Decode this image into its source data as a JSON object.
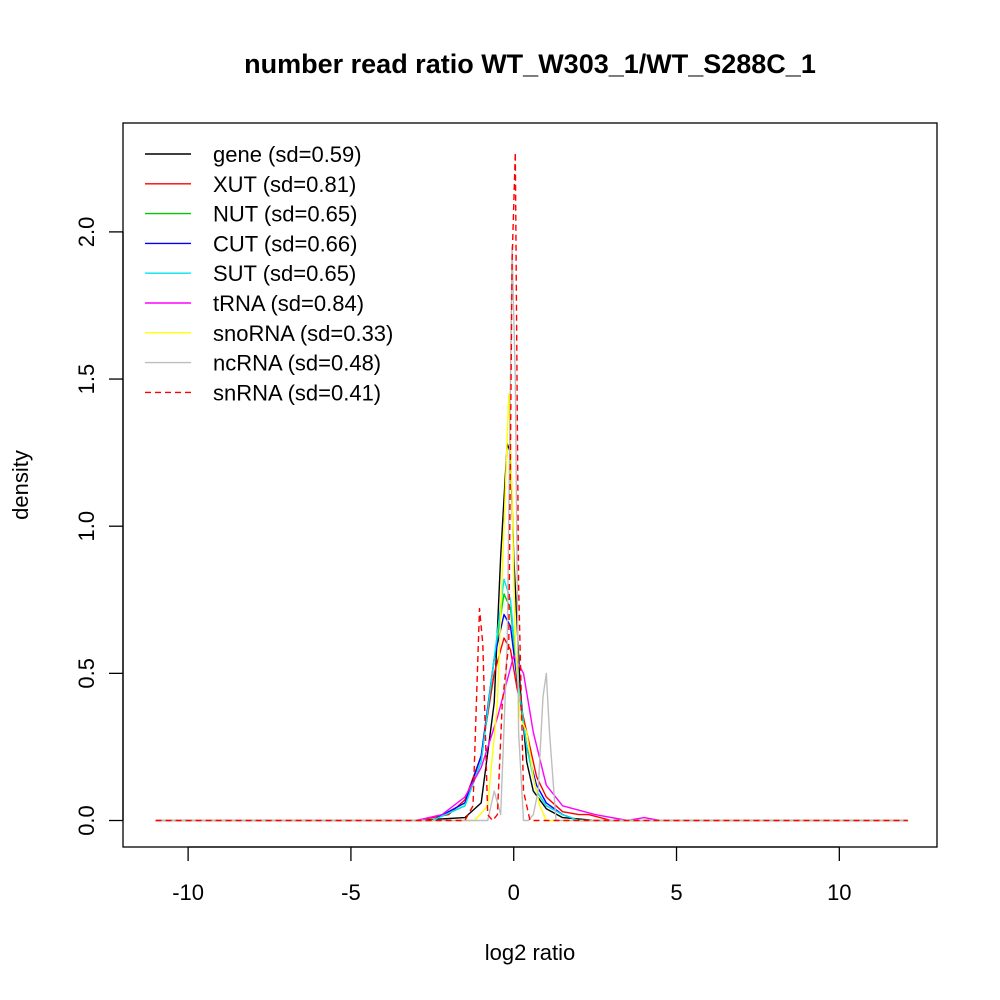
{
  "chart_data": {
    "type": "line",
    "title": "number read ratio WT_W303_1/WT_S288C_1",
    "xlabel": "log2 ratio",
    "ylabel": "density",
    "xlim": [
      -12,
      13
    ],
    "ylim": [
      -0.09,
      2.37
    ],
    "x_ticks": [
      -10,
      -5,
      0,
      5,
      10
    ],
    "x_tick_labels": [
      "-10",
      "-5",
      "0",
      "5",
      "10"
    ],
    "y_ticks": [
      0.0,
      0.5,
      1.0,
      1.5,
      2.0
    ],
    "y_tick_labels": [
      "0.0",
      "0.5",
      "1.0",
      "1.5",
      "2.0"
    ],
    "grid": false,
    "legend_position": "top-left",
    "series": [
      {
        "name": "gene (sd=0.59)",
        "color": "#000000",
        "dash": "solid",
        "x": [
          -11,
          -3,
          -1.5,
          -1,
          -0.6,
          -0.4,
          -0.2,
          -0.1,
          0,
          0.2,
          0.4,
          0.6,
          1,
          1.5,
          2.5,
          12.1
        ],
        "y": [
          0,
          0,
          0.01,
          0.06,
          0.4,
          0.9,
          1.28,
          1.25,
          0.9,
          0.45,
          0.2,
          0.1,
          0.04,
          0.01,
          0,
          0
        ]
      },
      {
        "name": "XUT (sd=0.81)",
        "color": "#ff0000",
        "dash": "solid",
        "x": [
          -11,
          -3,
          -2,
          -1.5,
          -1,
          -0.6,
          -0.3,
          -0.1,
          0.1,
          0.4,
          0.7,
          1,
          1.5,
          2,
          2.3,
          3,
          12.1
        ],
        "y": [
          0,
          0,
          0.02,
          0.07,
          0.22,
          0.5,
          0.62,
          0.58,
          0.45,
          0.3,
          0.15,
          0.08,
          0.03,
          0.02,
          0.02,
          0,
          0
        ]
      },
      {
        "name": "NUT (sd=0.65)",
        "color": "#00cd00",
        "dash": "solid",
        "x": [
          -11,
          -2.5,
          -1.5,
          -1,
          -0.6,
          -0.3,
          -0.1,
          0.1,
          0.4,
          0.7,
          1,
          1.5,
          2,
          12.1
        ],
        "y": [
          0,
          0,
          0.05,
          0.2,
          0.55,
          0.77,
          0.72,
          0.5,
          0.25,
          0.1,
          0.05,
          0.02,
          0,
          0
        ]
      },
      {
        "name": "CUT (sd=0.66)",
        "color": "#0000ff",
        "dash": "solid",
        "x": [
          -11,
          -2.5,
          -1.5,
          -1,
          -0.6,
          -0.3,
          -0.1,
          0.1,
          0.4,
          0.7,
          1,
          1.5,
          2,
          12.1
        ],
        "y": [
          0,
          0,
          0.06,
          0.22,
          0.55,
          0.7,
          0.66,
          0.48,
          0.25,
          0.12,
          0.06,
          0.02,
          0,
          0
        ]
      },
      {
        "name": "SUT (sd=0.65)",
        "color": "#00e5ee",
        "dash": "solid",
        "x": [
          -11,
          -2.5,
          -1.5,
          -1,
          -0.6,
          -0.3,
          -0.1,
          0.1,
          0.4,
          0.7,
          1,
          1.5,
          2,
          12.1
        ],
        "y": [
          0,
          0,
          0.05,
          0.2,
          0.55,
          0.82,
          0.75,
          0.5,
          0.25,
          0.1,
          0.05,
          0.02,
          0,
          0
        ]
      },
      {
        "name": "tRNA (sd=0.84)",
        "color": "#ff00ff",
        "dash": "solid",
        "x": [
          -11,
          -4.5,
          -3,
          -2.2,
          -1.5,
          -1,
          -0.5,
          0,
          0.3,
          0.6,
          1,
          1.5,
          2.5,
          3.5,
          4,
          4.5,
          12.1
        ],
        "y": [
          0,
          0,
          0,
          0.02,
          0.08,
          0.18,
          0.35,
          0.56,
          0.5,
          0.3,
          0.12,
          0.05,
          0.02,
          0,
          0.01,
          0,
          0
        ]
      },
      {
        "name": "snoRNA (sd=0.33)",
        "color": "#ffff00",
        "dash": "solid",
        "x": [
          -11,
          -1.2,
          -0.8,
          -0.5,
          -0.3,
          -0.15,
          -0.05,
          0.05,
          0.2,
          0.4,
          0.6,
          0.8,
          1,
          12.1
        ],
        "y": [
          0,
          0,
          0.05,
          0.4,
          1.0,
          1.45,
          1.1,
          0.6,
          0.35,
          0.3,
          0.15,
          0.05,
          0,
          0
        ]
      },
      {
        "name": "ncRNA (sd=0.48)",
        "color": "#bebebe",
        "dash": "solid",
        "x": [
          -11,
          -0.8,
          -0.6,
          -0.4,
          -0.2,
          -0.05,
          0.05,
          0.15,
          0.3,
          0.45,
          0.6,
          0.75,
          0.9,
          1.0,
          1.1,
          1.3,
          12.1
        ],
        "y": [
          0,
          0,
          0.1,
          0.02,
          0.6,
          1.95,
          1.5,
          0.3,
          0.0,
          0.0,
          0.02,
          0.1,
          0.42,
          0.5,
          0.3,
          0,
          0
        ]
      },
      {
        "name": "snRNA (sd=0.41)",
        "color": "#ff0000",
        "dash": "dashed",
        "x": [
          -11,
          -1.5,
          -1.25,
          -1.05,
          -0.95,
          -0.8,
          -0.65,
          -0.5,
          -0.35,
          -0.15,
          -0.05,
          0.05,
          0.15,
          0.3,
          0.5,
          12.1
        ],
        "y": [
          0,
          0,
          0.05,
          0.72,
          0.6,
          0.02,
          0,
          0.02,
          0.4,
          0.6,
          1.9,
          2.27,
          0.8,
          0.1,
          0,
          0
        ]
      }
    ]
  }
}
